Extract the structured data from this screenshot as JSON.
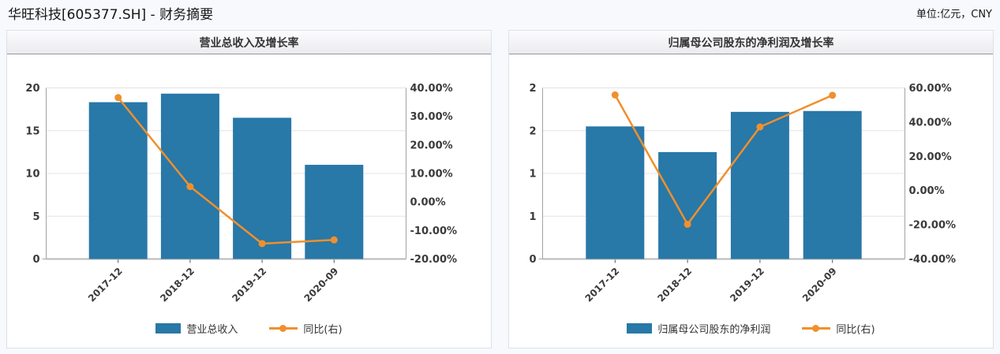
{
  "page": {
    "title": "华旺科技[605377.SH] - 财务摘要",
    "unit_label": "单位:亿元，CNY"
  },
  "colors": {
    "bar": "#2878a8",
    "line": "#f0902c",
    "grid": "#e3e3e3",
    "axis_vertical": "#a3a3a3",
    "axis_bottom": "#b8b8b8",
    "tick_text": "#3a3a3a",
    "x_tick_mark": "#555555"
  },
  "chart_data": [
    {
      "type": "bar",
      "title": "营业总收入及增长率",
      "categories": [
        "2017-12",
        "2018-12",
        "2019-12",
        "2020-09"
      ],
      "series": [
        {
          "type": "bar",
          "name": "营业总收入",
          "axis": "left",
          "values": [
            18.33,
            19.33,
            16.51,
            11.01
          ]
        },
        {
          "type": "line",
          "name": "同比(右)",
          "axis": "right",
          "values": [
            36.6,
            5.4,
            -14.6,
            -13.3
          ]
        }
      ],
      "left_axis": {
        "min": 0,
        "max": 20,
        "tick_labels": [
          "0",
          "5",
          "10",
          "15",
          "20"
        ]
      },
      "right_axis": {
        "min": -20,
        "max": 40,
        "tick_labels": [
          "-20.00%",
          "-10.00%",
          "0.00%",
          "10.00%",
          "20.00%",
          "30.00%",
          "40.00%"
        ]
      },
      "legend": [
        "营业总收入",
        "同比(右)"
      ],
      "grid": "horizontal-only",
      "legend_position": "bottom-center"
    },
    {
      "type": "bar",
      "title": "归属母公司股东的净利润及增长率",
      "categories": [
        "2017-12",
        "2018-12",
        "2019-12",
        "2020-09"
      ],
      "series": [
        {
          "type": "bar",
          "name": "归属母公司股东的净利润",
          "axis": "left",
          "values": [
            1.55,
            1.25,
            1.72,
            1.73
          ]
        },
        {
          "type": "line",
          "name": "同比(右)",
          "axis": "right",
          "values": [
            55.9,
            -19.7,
            37.2,
            55.7
          ]
        }
      ],
      "left_axis": {
        "min": 0,
        "max": 2,
        "tick_labels": [
          "0",
          "1",
          "1",
          "2",
          "2"
        ]
      },
      "right_axis": {
        "min": -40,
        "max": 60,
        "tick_labels": [
          "-40.00%",
          "-20.00%",
          "0.00%",
          "20.00%",
          "40.00%",
          "60.00%"
        ]
      },
      "legend": [
        "归属母公司股东的净利润",
        "同比(右)"
      ],
      "grid": "horizontal-only",
      "legend_position": "bottom-center"
    }
  ]
}
